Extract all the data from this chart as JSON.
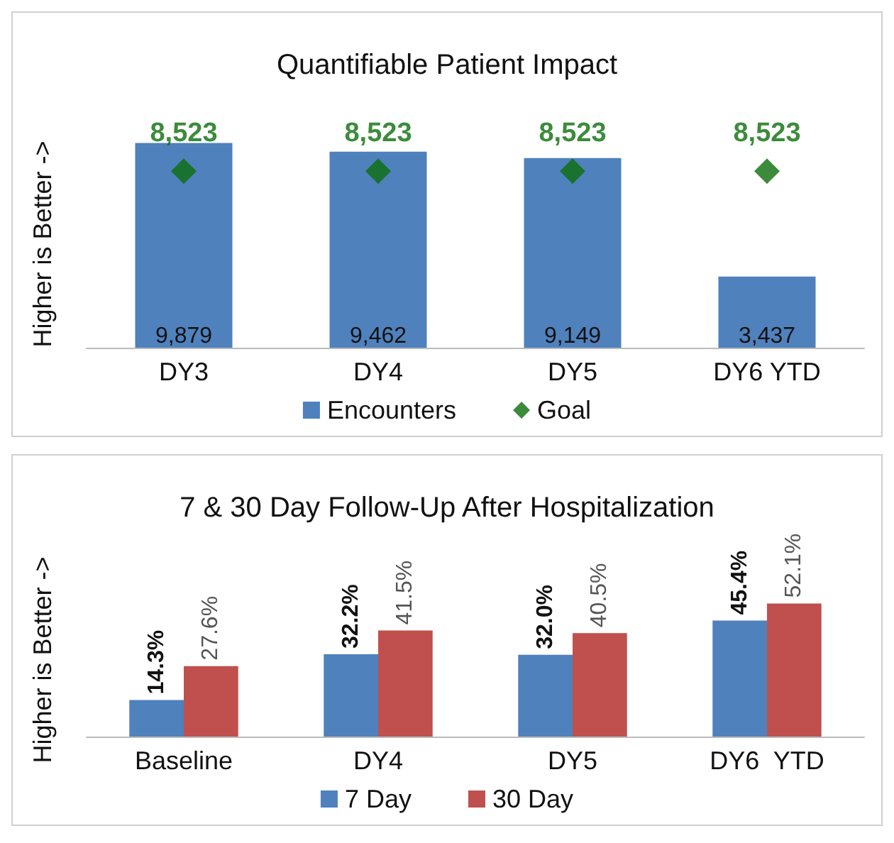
{
  "chart_data": [
    {
      "type": "bar",
      "title": "Quantifiable Patient Impact",
      "ylabel": "Higher is Better ->",
      "categories": [
        "DY3",
        "DY4",
        "DY5",
        "DY6 YTD"
      ],
      "legend": "bottom",
      "grid": false,
      "series": [
        {
          "name": "Encounters",
          "color": "#4f81bd",
          "values": [
            9879,
            9462,
            9149,
            3437
          ],
          "value_labels": [
            "9,879",
            "9,462",
            "9,149",
            "3,437"
          ]
        },
        {
          "name": "Goal",
          "type": "scatter",
          "marker": "diamond",
          "color": "#0b6e0b",
          "values": [
            8523,
            8523,
            8523,
            8523
          ],
          "value_labels": [
            "8,523",
            "8,523",
            "8,523",
            "8,523"
          ]
        }
      ]
    },
    {
      "type": "bar",
      "title": "7 & 30 Day Follow-Up After Hospitalization",
      "ylabel": "Higher is Better ->",
      "categories": [
        "Baseline",
        "DY4",
        "DY5",
        "DY6  YTD"
      ],
      "legend": "bottom",
      "grid": false,
      "series": [
        {
          "name": "7 Day",
          "color": "#4f81bd",
          "values": [
            14.3,
            32.2,
            32.0,
            45.4
          ],
          "value_labels": [
            "14.3%",
            "32.2%",
            "32.0%",
            "45.4%"
          ]
        },
        {
          "name": "30 Day",
          "color": "#c0504d",
          "values": [
            27.6,
            41.5,
            40.5,
            52.1
          ],
          "value_labels": [
            "27.6%",
            "41.5%",
            "40.5%",
            "52.1%"
          ]
        }
      ]
    }
  ]
}
